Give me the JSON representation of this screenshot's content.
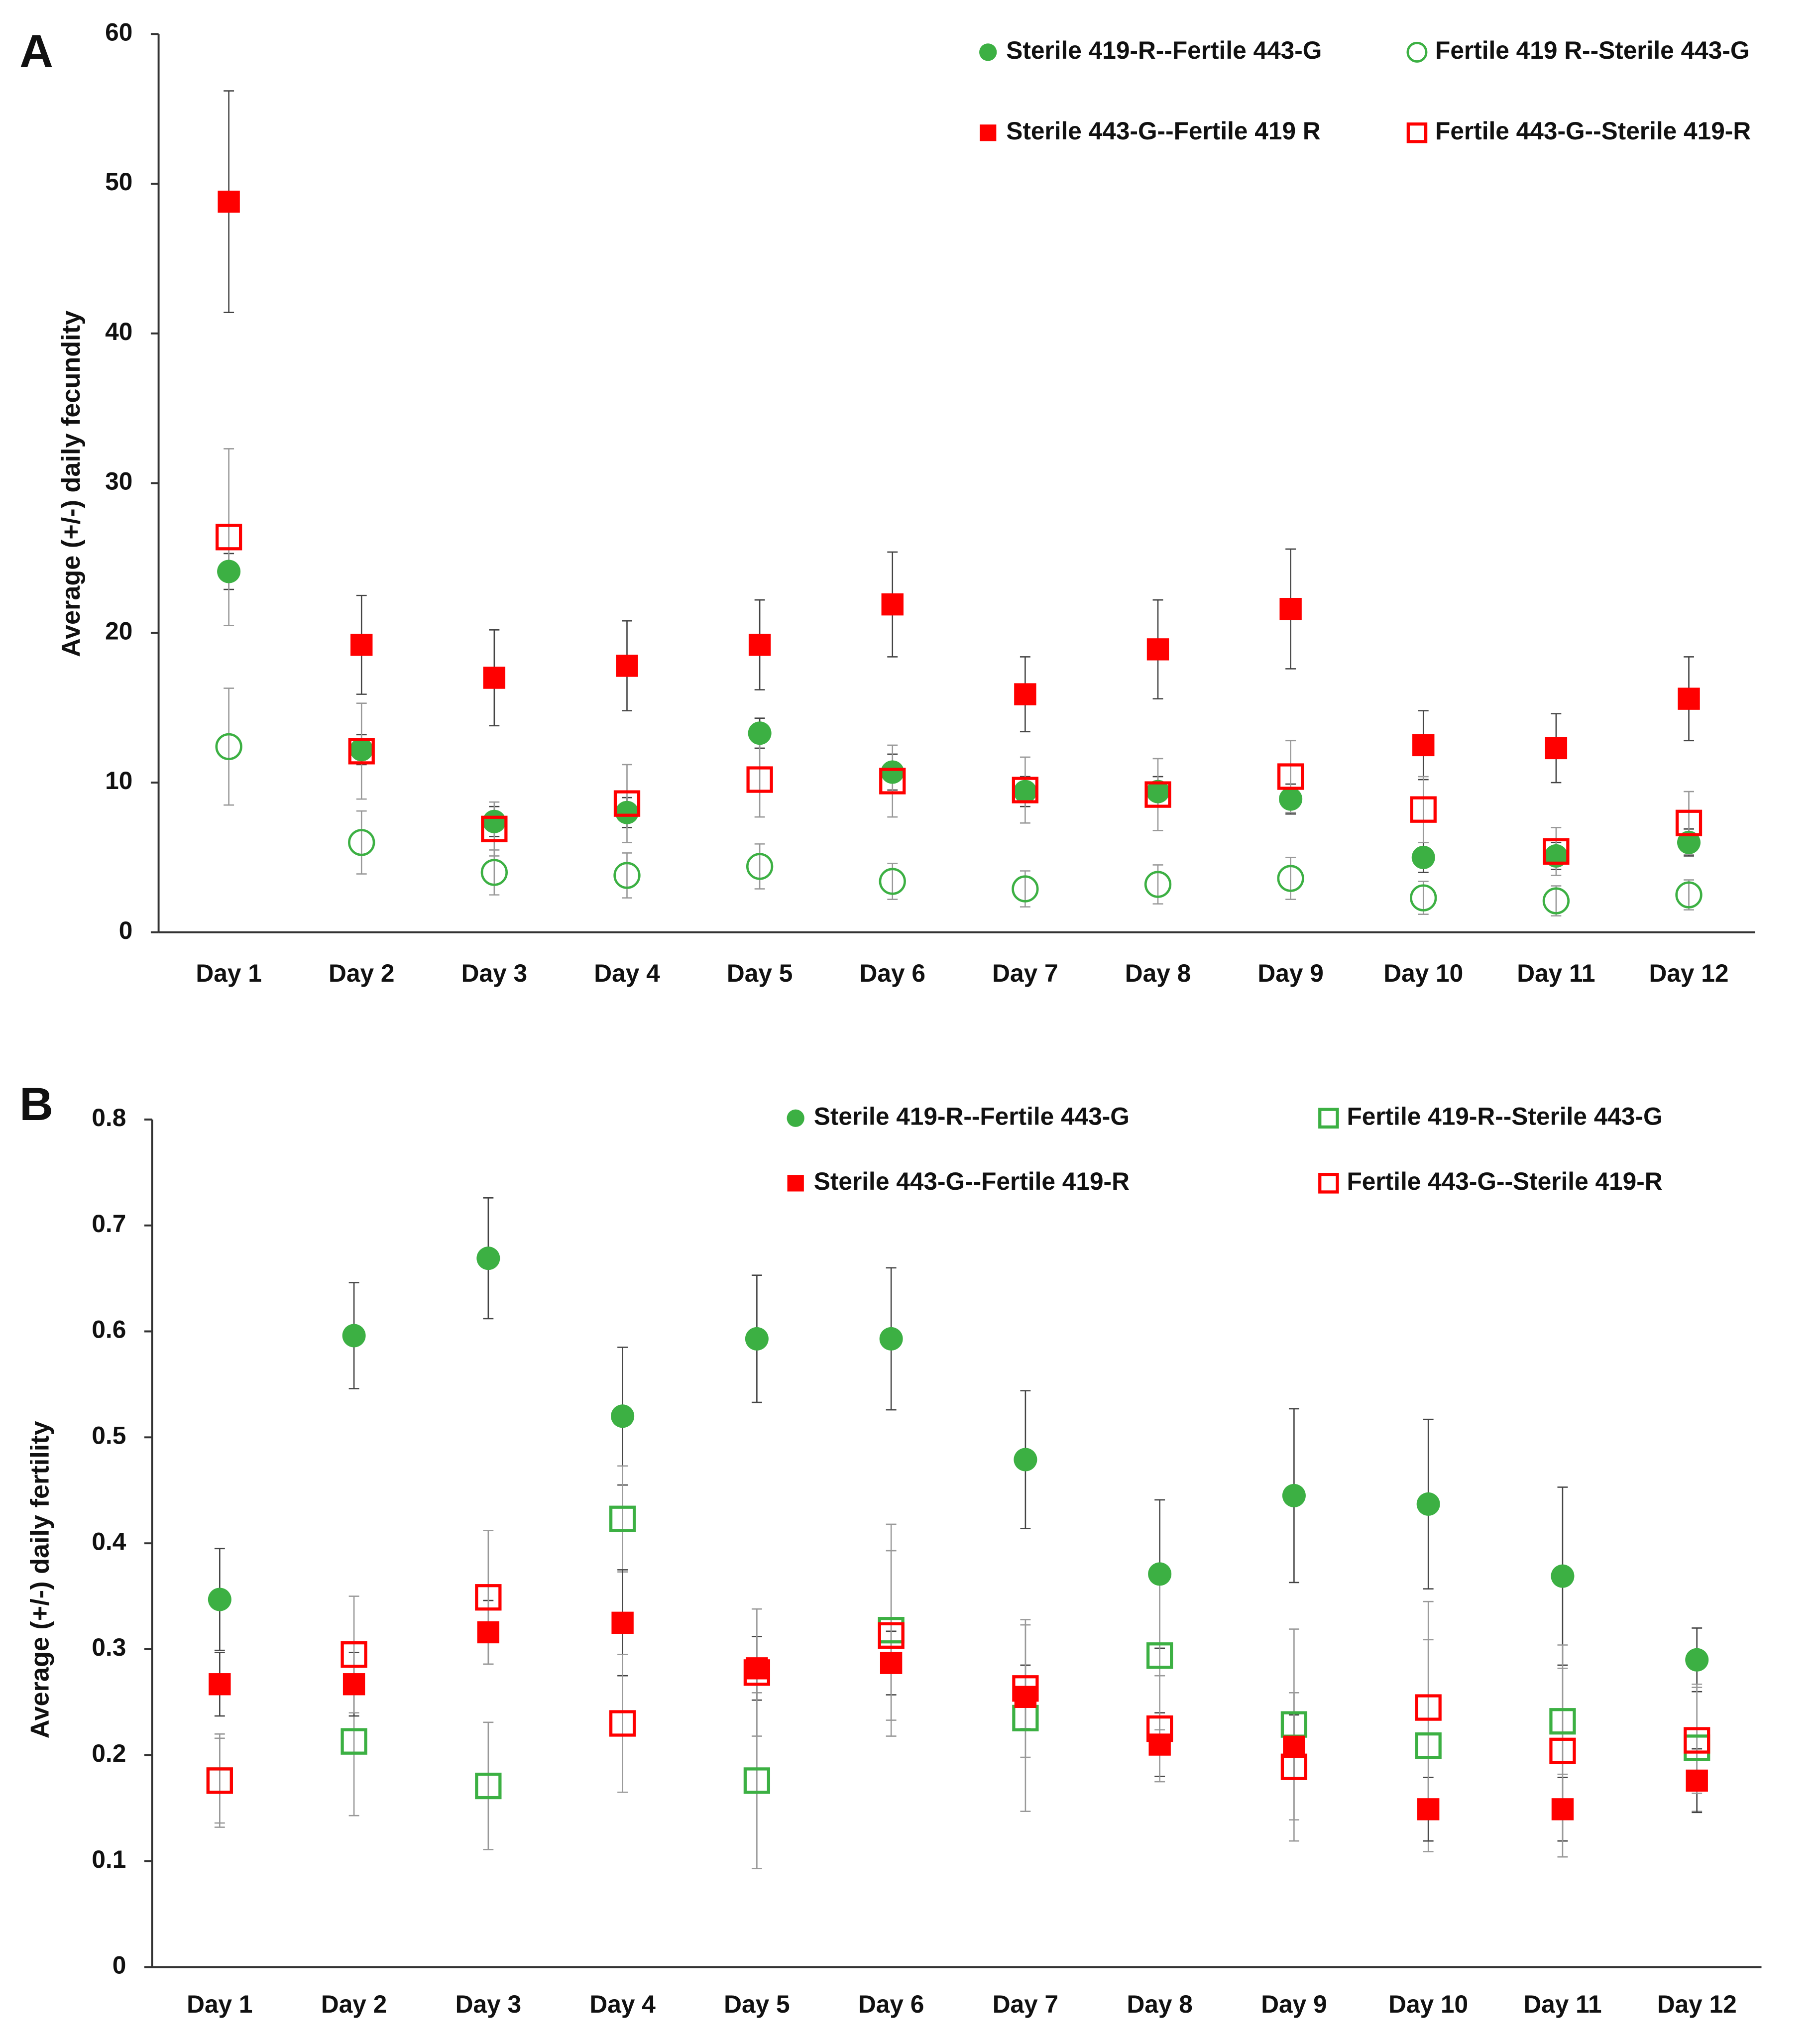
{
  "chart_data": [
    {
      "type": "scatter",
      "panel_label": "A",
      "y_label": "Average (+/-) daily fecundity",
      "categories": [
        "Day 1",
        "Day 2",
        "Day 3",
        "Day 4",
        "Day 5",
        "Day 6",
        "Day 7",
        "Day 8",
        "Day 9",
        "Day 10",
        "Day 11",
        "Day 12"
      ],
      "ylim": [
        0,
        60
      ],
      "yticks": [
        0,
        10,
        20,
        30,
        40,
        50,
        60
      ],
      "legend": "top-right",
      "series": [
        {
          "name": "Sterile 419-R--Fertile 443-G",
          "color": "#3cb043",
          "marker": "circle",
          "filled": true,
          "values": [
            24.1,
            12.2,
            7.4,
            8.0,
            13.3,
            10.7,
            9.4,
            9.4,
            8.9,
            5.0,
            5.1,
            6.0
          ],
          "errors": [
            1.2,
            1.0,
            1.0,
            1.0,
            1.0,
            1.2,
            1.0,
            1.0,
            1.0,
            1.0,
            0.9,
            0.9
          ]
        },
        {
          "name": "Fertile 419 R--Sterile 443-G",
          "color": "#3cb043",
          "marker": "circle",
          "filled": false,
          "values": [
            12.4,
            6.0,
            4.0,
            3.8,
            4.4,
            3.4,
            2.9,
            3.2,
            3.6,
            2.3,
            2.1,
            2.5
          ],
          "errors": [
            3.9,
            2.1,
            1.5,
            1.5,
            1.5,
            1.2,
            1.2,
            1.3,
            1.4,
            1.1,
            1.0,
            1.0
          ]
        },
        {
          "name": "Sterile 443-G--Fertile 419 R",
          "color": "#ff0000",
          "marker": "square",
          "filled": true,
          "values": [
            48.8,
            19.2,
            17.0,
            17.8,
            19.2,
            21.9,
            15.9,
            18.9,
            21.6,
            12.5,
            12.3,
            15.6
          ],
          "errors": [
            7.4,
            3.3,
            3.2,
            3.0,
            3.0,
            3.5,
            2.5,
            3.3,
            4.0,
            2.3,
            2.3,
            2.8
          ]
        },
        {
          "name": "Fertile 443-G--Sterile 419-R",
          "color": "#ff0000",
          "marker": "square",
          "filled": false,
          "values": [
            26.4,
            12.1,
            6.9,
            8.6,
            10.2,
            10.1,
            9.5,
            9.2,
            10.4,
            8.2,
            5.4,
            7.3
          ],
          "errors": [
            5.9,
            3.2,
            1.8,
            2.6,
            2.5,
            2.4,
            2.2,
            2.4,
            2.4,
            2.2,
            1.6,
            2.1
          ]
        }
      ]
    },
    {
      "type": "scatter",
      "panel_label": "B",
      "y_label": "Average (+/-) daily fertility",
      "categories": [
        "Day 1",
        "Day 2",
        "Day 3",
        "Day 4",
        "Day 5",
        "Day 6",
        "Day 7",
        "Day 8",
        "Day 9",
        "Day 10",
        "Day 11",
        "Day 12"
      ],
      "ylim": [
        0,
        0.8
      ],
      "yticks": [
        0,
        0.1,
        0.2,
        0.3,
        0.4,
        0.5,
        0.6,
        0.7,
        0.8
      ],
      "legend": "top-right",
      "series": [
        {
          "name": "Sterile 419-R--Fertile 443-G",
          "color": "#3cb043",
          "marker": "circle",
          "filled": true,
          "values": [
            0.347,
            0.596,
            0.669,
            0.52,
            0.593,
            0.593,
            0.479,
            0.371,
            0.445,
            0.437,
            0.369,
            0.29
          ],
          "errors": [
            0.048,
            0.05,
            0.057,
            0.065,
            0.06,
            0.067,
            0.065,
            0.07,
            0.082,
            0.08,
            0.084,
            0.03
          ]
        },
        {
          "name": "Fertile 419-R--Sterile 443-G",
          "color": "#3cb043",
          "marker": "square",
          "filled": false,
          "values": [
            0.176,
            0.213,
            0.171,
            0.423,
            0.176,
            0.318,
            0.235,
            0.294,
            0.229,
            0.209,
            0.232,
            0.207
          ],
          "errors": [
            0.044,
            0.07,
            0.06,
            0.05,
            0.083,
            0.1,
            0.088,
            0.07,
            0.09,
            0.1,
            0.05,
            0.06
          ]
        },
        {
          "name": "Sterile 443-G--Fertile 419-R",
          "color": "#ff0000",
          "marker": "square",
          "filled": true,
          "values": [
            0.267,
            0.267,
            0.316,
            0.325,
            0.282,
            0.287,
            0.255,
            0.21,
            0.208,
            0.149,
            0.149,
            0.176
          ],
          "errors": [
            0.03,
            0.03,
            0.03,
            0.05,
            0.03,
            0.03,
            0.03,
            0.03,
            0.03,
            0.03,
            0.03,
            0.03
          ]
        },
        {
          "name": "Fertile 443-G--Sterile 419-R",
          "color": "#ff0000",
          "marker": "square",
          "filled": false,
          "values": [
            0.176,
            0.295,
            0.349,
            0.23,
            0.278,
            0.313,
            0.263,
            0.225,
            0.189,
            0.245,
            0.204,
            0.214
          ],
          "errors": [
            0.04,
            0.055,
            0.063,
            0.065,
            0.06,
            0.08,
            0.065,
            0.05,
            0.07,
            0.1,
            0.1,
            0.05
          ]
        }
      ]
    }
  ]
}
